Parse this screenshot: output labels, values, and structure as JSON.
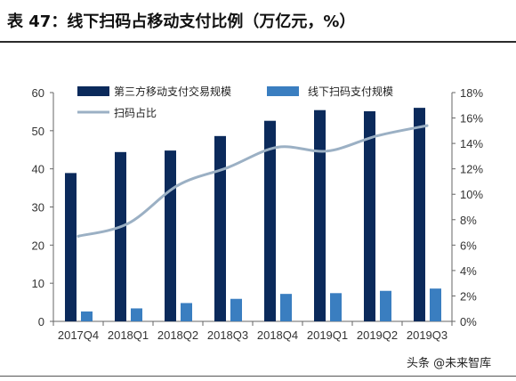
{
  "title": "表 47：线下扫码占移动支付比例（万亿元，%）",
  "watermark": "头条 @未来智库",
  "colors": {
    "bar_dark": "#0b2a5b",
    "bar_light": "#3a7ec0",
    "line": "#9bb0c4"
  },
  "chart_data": {
    "type": "bar",
    "categories": [
      "2017Q4",
      "2018Q1",
      "2018Q2",
      "2018Q3",
      "2018Q4",
      "2019Q1",
      "2019Q2",
      "2019Q3"
    ],
    "series": [
      {
        "name": "第三方移动支付交易规模",
        "type": "bar",
        "axis": "left",
        "values": [
          38.9,
          44.4,
          44.8,
          48.6,
          52.6,
          55.4,
          55.1,
          56.0
        ]
      },
      {
        "name": "线下扫码支付规模",
        "type": "bar",
        "axis": "left",
        "values": [
          2.6,
          3.4,
          4.8,
          5.9,
          7.2,
          7.4,
          8.0,
          8.6
        ]
      },
      {
        "name": "扫码占比",
        "type": "line",
        "axis": "right",
        "values": [
          6.7,
          7.7,
          10.7,
          12.1,
          13.7,
          13.4,
          14.6,
          15.4
        ]
      }
    ],
    "y_left": {
      "lim": [
        0,
        60
      ],
      "ticks": [
        "0",
        "10",
        "20",
        "30",
        "40",
        "50",
        "60"
      ]
    },
    "y_right": {
      "lim": [
        0,
        18
      ],
      "ticks": [
        "0%",
        "2%",
        "4%",
        "6%",
        "8%",
        "10%",
        "12%",
        "14%",
        "16%",
        "18%"
      ]
    },
    "grid": false,
    "legend_position": "top"
  }
}
